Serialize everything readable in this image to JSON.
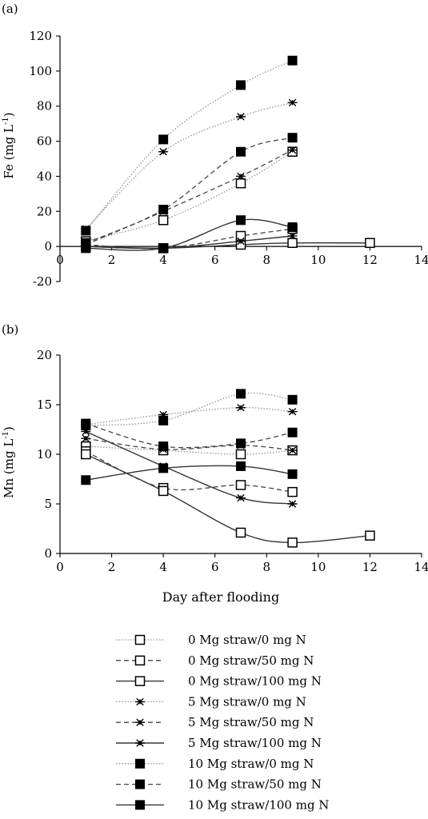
{
  "chart_data": [
    {
      "type": "line",
      "panel_label": "(a)",
      "ylabel": "Fe (mg L",
      "ylabel_sup": "-1",
      "ylabel_close": ")",
      "xlim": [
        0,
        14
      ],
      "ylim": [
        -20,
        120
      ],
      "x_ticks": [
        "0",
        "2",
        "4",
        "6",
        "8",
        "10",
        "12",
        "14"
      ],
      "y_ticks": [
        "-20",
        "0",
        "20",
        "40",
        "60",
        "80",
        "100",
        "120"
      ],
      "grid": false,
      "series": [
        {
          "name": "0 Mg straw/0 mg N",
          "marker": "open-square",
          "line": "dotted",
          "x": [
            1,
            4,
            7,
            9
          ],
          "y": [
            3,
            15,
            36,
            54
          ]
        },
        {
          "name": "0 Mg straw/50 mg N",
          "marker": "open-square",
          "line": "dashed",
          "x": [
            1,
            4,
            7,
            9
          ],
          "y": [
            1,
            -1,
            6,
            10
          ]
        },
        {
          "name": "0 Mg straw/100 mg N",
          "marker": "open-square",
          "line": "solid",
          "x": [
            1,
            4,
            7,
            9,
            12
          ],
          "y": [
            0,
            -1,
            1,
            2,
            2
          ]
        },
        {
          "name": "5 Mg straw/0 mg N",
          "marker": "star",
          "line": "dotted",
          "x": [
            1,
            4,
            7,
            9
          ],
          "y": [
            10,
            54,
            74,
            82
          ]
        },
        {
          "name": "5 Mg straw/50 mg N",
          "marker": "star",
          "line": "dashed",
          "x": [
            1,
            4,
            7,
            9
          ],
          "y": [
            1,
            20,
            40,
            55
          ]
        },
        {
          "name": "5 Mg straw/100 mg N",
          "marker": "star",
          "line": "solid",
          "x": [
            1,
            4,
            7,
            9
          ],
          "y": [
            0,
            -1,
            3,
            6
          ]
        },
        {
          "name": "10 Mg straw/0 mg N",
          "marker": "filled-square",
          "line": "dotted",
          "x": [
            1,
            4,
            7,
            9
          ],
          "y": [
            9,
            61,
            92,
            106
          ]
        },
        {
          "name": "10 Mg straw/50 mg N",
          "marker": "filled-square",
          "line": "dashed",
          "x": [
            1,
            4,
            7,
            9
          ],
          "y": [
            2,
            21,
            54,
            62
          ]
        },
        {
          "name": "10 Mg straw/100 mg N",
          "marker": "filled-square",
          "line": "solid",
          "x": [
            1,
            4,
            7,
            9
          ],
          "y": [
            -1,
            -1,
            15,
            11
          ]
        }
      ]
    },
    {
      "type": "line",
      "panel_label": "(b)",
      "ylabel": "Mn (mg L",
      "ylabel_sup": "-1",
      "ylabel_close": ")",
      "xlabel": "Day after flooding",
      "xlim": [
        0,
        14
      ],
      "ylim": [
        0,
        20
      ],
      "x_ticks": [
        "0",
        "2",
        "4",
        "6",
        "8",
        "10",
        "12",
        "14"
      ],
      "y_ticks": [
        "0",
        "5",
        "10",
        "15",
        "20"
      ],
      "grid": false,
      "series": [
        {
          "name": "0 Mg straw/0 mg N",
          "marker": "open-square",
          "line": "dotted",
          "x": [
            1,
            4,
            7,
            9
          ],
          "y": [
            10.8,
            10.4,
            10.0,
            10.4
          ]
        },
        {
          "name": "0 Mg straw/50 mg N",
          "marker": "open-square",
          "line": "dashed",
          "x": [
            1,
            4,
            7,
            9
          ],
          "y": [
            10.3,
            6.6,
            6.9,
            6.2
          ]
        },
        {
          "name": "0 Mg straw/100 mg N",
          "marker": "open-square",
          "line": "solid",
          "x": [
            1,
            4,
            7,
            9,
            12
          ],
          "y": [
            10.0,
            6.3,
            2.1,
            1.1,
            1.8
          ]
        },
        {
          "name": "5 Mg straw/0 mg N",
          "marker": "star",
          "line": "dotted",
          "x": [
            1,
            4,
            7,
            9
          ],
          "y": [
            13.0,
            14.0,
            14.7,
            14.3
          ]
        },
        {
          "name": "5 Mg straw/50 mg N",
          "marker": "star",
          "line": "dashed",
          "x": [
            1,
            4,
            7,
            9
          ],
          "y": [
            11.6,
            10.5,
            10.9,
            10.4
          ]
        },
        {
          "name": "5 Mg straw/100 mg N",
          "marker": "star",
          "line": "solid",
          "x": [
            1,
            4,
            7,
            9
          ],
          "y": [
            12.3,
            8.8,
            5.6,
            5.0
          ]
        },
        {
          "name": "10 Mg straw/0 mg N",
          "marker": "filled-square",
          "line": "dotted",
          "x": [
            1,
            4,
            7,
            9
          ],
          "y": [
            12.9,
            13.4,
            16.1,
            15.5
          ]
        },
        {
          "name": "10 Mg straw/50 mg N",
          "marker": "filled-square",
          "line": "dashed",
          "x": [
            1,
            4,
            7,
            9
          ],
          "y": [
            13.1,
            10.8,
            11.1,
            12.2
          ]
        },
        {
          "name": "10 Mg straw/100 mg N",
          "marker": "filled-square",
          "line": "solid",
          "x": [
            1,
            4,
            7,
            9
          ],
          "y": [
            7.4,
            8.6,
            8.8,
            8.0
          ]
        }
      ]
    }
  ],
  "legend": [
    {
      "label": "0 Mg straw/0 mg N",
      "marker": "open-square",
      "line": "dotted"
    },
    {
      "label": "0 Mg straw/50 mg N",
      "marker": "open-square",
      "line": "dashed"
    },
    {
      "label": "0 Mg straw/100 mg N",
      "marker": "open-square",
      "line": "solid"
    },
    {
      "label": "5 Mg straw/0 mg N",
      "marker": "star",
      "line": "dotted"
    },
    {
      "label": "5 Mg straw/50 mg N",
      "marker": "star",
      "line": "dashed"
    },
    {
      "label": "5 Mg straw/100 mg N",
      "marker": "star",
      "line": "solid"
    },
    {
      "label": "10 Mg straw/0 mg N",
      "marker": "filled-square",
      "line": "dotted"
    },
    {
      "label": "10 Mg straw/50 mg N",
      "marker": "filled-square",
      "line": "dashed"
    },
    {
      "label": "10 Mg straw/100 mg N",
      "marker": "filled-square",
      "line": "solid"
    }
  ],
  "colors": {
    "ink": "#000000",
    "dotted_line": "#9a9a9a",
    "dashed_line": "#444444",
    "solid_line": "#333333",
    "background": "#ffffff"
  }
}
